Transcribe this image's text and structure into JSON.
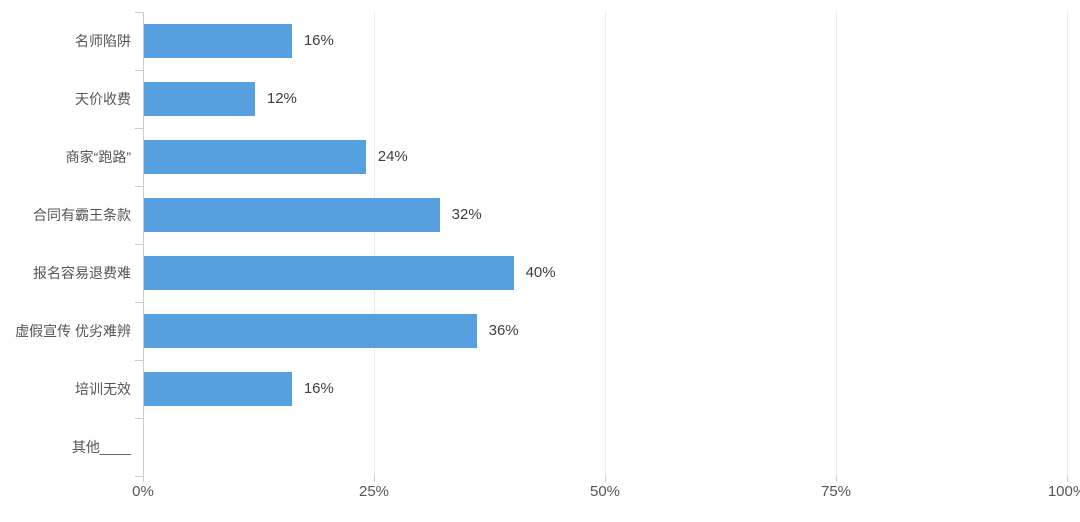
{
  "chart_data": {
    "type": "bar",
    "orientation": "horizontal",
    "title": "",
    "xlabel": "",
    "ylabel": "",
    "categories": [
      "名师陷阱",
      "天价收费",
      "商家“跑路”",
      "合同有霸王条款",
      "报名容易退费难",
      "虚假宣传 优劣难辨",
      "培训无效",
      "其他____"
    ],
    "values": [
      16,
      12,
      24,
      32,
      40,
      36,
      16,
      0
    ],
    "value_labels": [
      "16%",
      "12%",
      "24%",
      "32%",
      "40%",
      "36%",
      "16%",
      ""
    ],
    "x_ticks": [
      {
        "label": "0%",
        "value": 0
      },
      {
        "label": "25%",
        "value": 25
      },
      {
        "label": "50%",
        "value": 50
      },
      {
        "label": "75%",
        "value": 75
      },
      {
        "label": "100%",
        "value": 100
      }
    ],
    "xlim": [
      0,
      100
    ],
    "grid": true,
    "legend": "none",
    "colors": {
      "bar": "#56a0e0",
      "axis": "#cccccc",
      "grid": "#ebebeb",
      "category_text": "#555555",
      "value_text": "#3f3f3f",
      "tick_text": "#555555",
      "background": "#ffffff"
    }
  }
}
